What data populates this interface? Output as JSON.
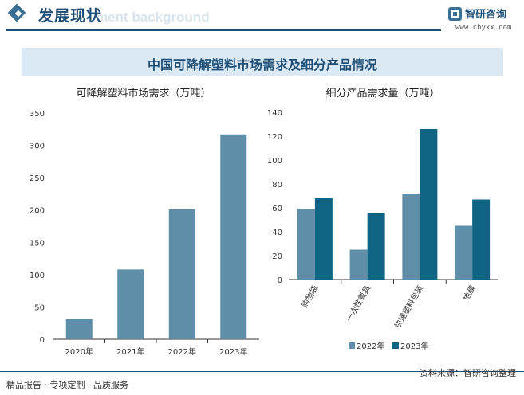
{
  "header": {
    "title": "发展现状",
    "ghost_text": "ment background",
    "logo_name": "智研咨询",
    "logo_url": "www.chyxx.com"
  },
  "banner": {
    "title": "中国可降解塑料市场需求及细分产品情况"
  },
  "footer": {
    "left": "精品报告 · 专项定制 · 品质服务",
    "right": "资料来源：智研咨询整理"
  },
  "colors": {
    "light_bar": "#5f8fa8",
    "dark_bar": "#0e6482",
    "brand": "#1f4f77"
  },
  "chart_data": [
    {
      "type": "bar",
      "title": "可降解塑料市场需求（万吨）",
      "categories": [
        "2020年",
        "2021年",
        "2022年",
        "2023年"
      ],
      "values": [
        31,
        108,
        201,
        317
      ],
      "ylim": [
        0,
        350
      ],
      "yticks": [
        0,
        50,
        100,
        150,
        200,
        250,
        300,
        350
      ],
      "grid": false
    },
    {
      "type": "bar",
      "title": "细分产品需求量（万吨）",
      "categories": [
        "购物袋",
        "一次性餐具",
        "快递塑料包装",
        "地膜"
      ],
      "series": [
        {
          "name": "2022年",
          "values": [
            59,
            25,
            72,
            45
          ]
        },
        {
          "name": "2023年",
          "values": [
            68,
            56,
            126,
            67
          ]
        }
      ],
      "ylim": [
        0,
        140
      ],
      "yticks": [
        0,
        20,
        40,
        60,
        80,
        100,
        120,
        140
      ],
      "legend": "bottom",
      "grid": false
    }
  ]
}
